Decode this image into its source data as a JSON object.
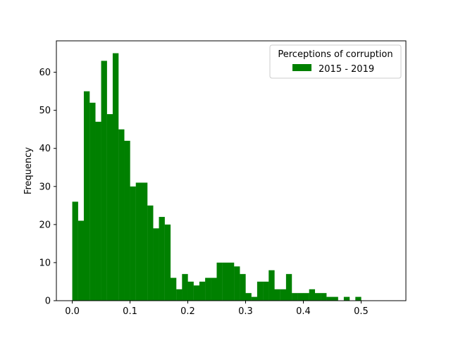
{
  "chart_data": {
    "type": "bar",
    "subtype": "histogram",
    "ylabel": "Frequency",
    "xlabel": "",
    "xlim": [
      -0.0275,
      0.5775
    ],
    "ylim": [
      0,
      68.25
    ],
    "bin_start": 0.0,
    "bin_width": 0.01,
    "values": [
      26,
      21,
      55,
      52,
      47,
      63,
      49,
      65,
      45,
      42,
      30,
      31,
      31,
      25,
      19,
      22,
      20,
      6,
      3,
      7,
      5,
      4,
      5,
      6,
      6,
      10,
      10,
      10,
      9,
      7,
      2,
      1,
      5,
      5,
      8,
      3,
      3,
      7,
      2,
      2,
      2,
      3,
      2,
      2,
      1,
      1,
      0,
      1,
      0,
      1
    ],
    "x_ticks": [
      0.0,
      0.1,
      0.2,
      0.3,
      0.4,
      0.5
    ],
    "x_tick_labels": [
      "0.0",
      "0.1",
      "0.2",
      "0.3",
      "0.4",
      "0.5"
    ],
    "y_ticks": [
      0,
      10,
      20,
      30,
      40,
      50,
      60
    ],
    "y_tick_labels": [
      "0",
      "10",
      "20",
      "30",
      "40",
      "50",
      "60"
    ],
    "series": [
      {
        "name": "2015 - 2019",
        "color": "#008000"
      }
    ],
    "legend": {
      "title": "Perceptions of corruption",
      "placement": "top-right"
    },
    "grid": false
  }
}
